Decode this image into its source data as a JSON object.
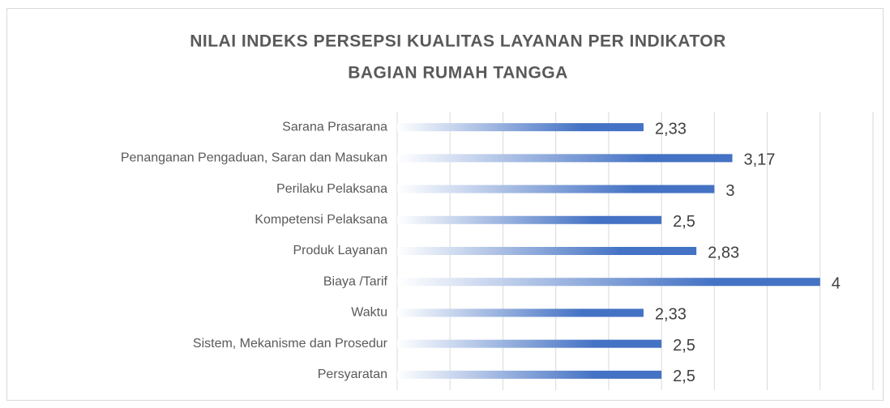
{
  "chart_data": {
    "type": "barh",
    "title": [
      "NILAI INDEKS PERSEPSI KUALITAS LAYANAN PER INDIKATOR",
      "BAGIAN RUMAH TANGGA"
    ],
    "categories": [
      "Sarana Prasarana",
      "Penanganan Pengaduan, Saran dan Masukan",
      "Perilaku Pelaksana",
      "Kompetensi Pelaksana",
      "Produk Layanan",
      "Biaya /Tarif",
      "Waktu",
      "Sistem, Mekanisme dan Prosedur",
      "Persyaratan"
    ],
    "values": [
      2.33,
      3.17,
      3,
      2.5,
      2.83,
      4,
      2.33,
      2.5,
      2.5
    ],
    "value_labels": [
      "2,33",
      "3,17",
      "3",
      "2,5",
      "2,83",
      "4",
      "2,33",
      "2,5",
      "2,5"
    ],
    "color": "#4472c4",
    "xlim": [
      0,
      4.5
    ],
    "xticks": [
      0,
      0.5,
      1,
      1.5,
      2,
      2.5,
      3,
      3.5,
      4,
      4.5
    ],
    "grid": true
  }
}
